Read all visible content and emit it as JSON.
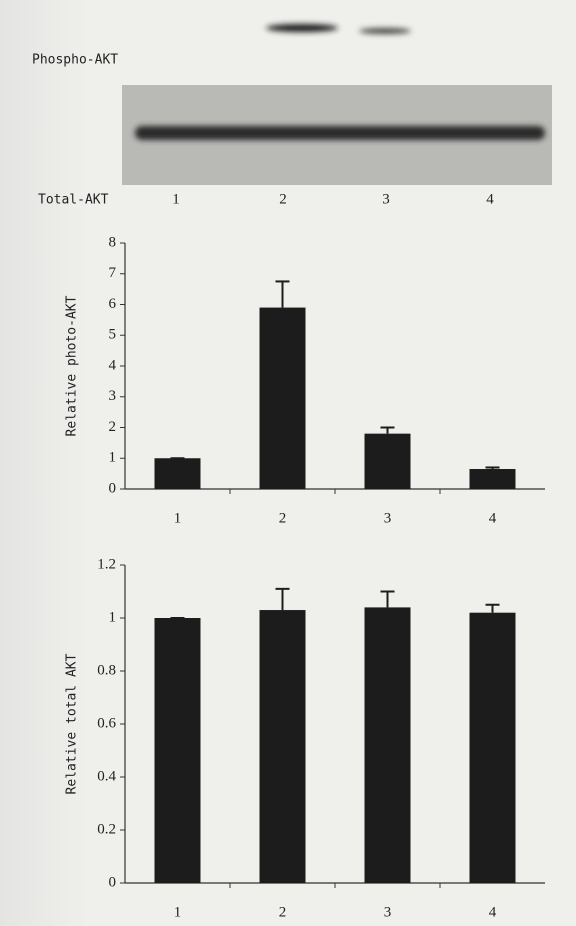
{
  "blot": {
    "phospho_label": "Phospho-AKT",
    "total_label": "Total-AKT",
    "lanes": [
      "1",
      "2",
      "3",
      "4"
    ]
  },
  "chart_data": [
    {
      "type": "bar",
      "ylabel": "Relative photo-AKT",
      "categories": [
        "1",
        "2",
        "3",
        "4"
      ],
      "values": [
        1,
        5.9,
        1.8,
        0.65
      ],
      "errors": [
        0,
        0.85,
        0.2,
        0.05
      ],
      "color": "#1c1c1c",
      "ylim": [
        0,
        8
      ],
      "yticks": [
        0,
        1,
        2,
        3,
        4,
        5,
        6,
        7,
        8
      ]
    },
    {
      "type": "bar",
      "ylabel": "Relative total AKT",
      "categories": [
        "1",
        "2",
        "3",
        "4"
      ],
      "values": [
        1,
        1.03,
        1.04,
        1.02
      ],
      "errors": [
        0,
        0.08,
        0.06,
        0.03
      ],
      "color": "#1c1c1c",
      "ylim": [
        0,
        1.2
      ],
      "yticks": [
        0,
        0.2,
        0.4,
        0.6,
        0.8,
        1,
        1.2
      ]
    }
  ]
}
